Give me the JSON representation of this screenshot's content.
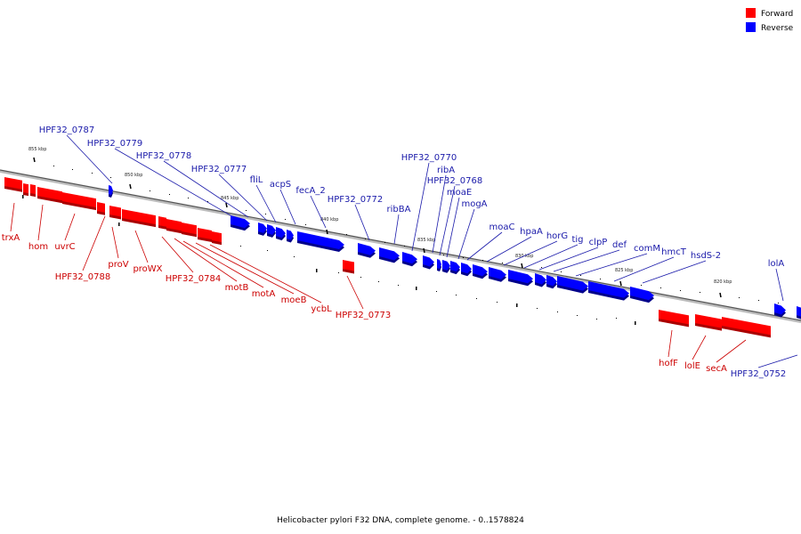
{
  "caption": "Helicobacter pylori F32 DNA, complete genome. - 0..1578824",
  "legend": {
    "forward": {
      "label": "Forward",
      "color": "#ff0000"
    },
    "reverse": {
      "label": "Reverse",
      "color": "#0000ff"
    }
  },
  "colors": {
    "forward_fill": "#ff0000",
    "forward_shadow": "#aa0000",
    "reverse_fill": "#0000ff",
    "reverse_shadow": "#00008a",
    "forward_label": "#cc0000",
    "reverse_label": "#1a1aaa",
    "backbone": "#888888"
  },
  "kbp_labels": [
    "855 kbp",
    "850 kbp",
    "845 kbp",
    "840 kbp",
    "835 kbp",
    "830 kbp",
    "825 kbp",
    "820 kbp"
  ],
  "forward_genes": [
    "trxA",
    "hom",
    "uvrC",
    "HPF32_0788",
    "proV",
    "proWX",
    "HPF32_0784",
    "motB",
    "motA",
    "moeB",
    "ycbL",
    "HPF32_0773",
    "hofF",
    "lolE",
    "secA"
  ],
  "reverse_genes": [
    "HPF32_0787",
    "HPF32_0779",
    "HPF32_0778",
    "HPF32_0777",
    "fliL",
    "acpS",
    "fecA_2",
    "HPF32_0772",
    "ribBA",
    "HPF32_0770",
    "ribA",
    "HPF32_0768",
    "moaE",
    "mogA",
    "moaC",
    "hpaA",
    "horG",
    "tig",
    "clpP",
    "def",
    "comM",
    "hmcT",
    "hsdS-2",
    "lolA",
    "HPF32_0752"
  ]
}
